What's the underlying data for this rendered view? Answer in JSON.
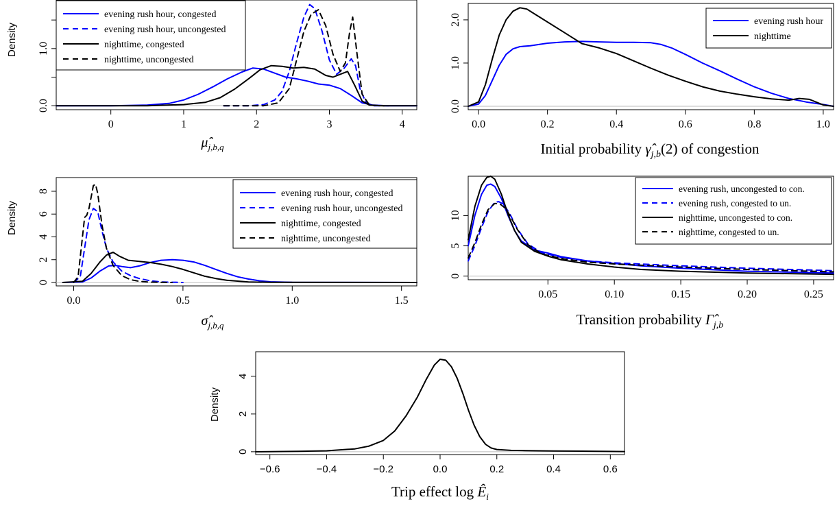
{
  "figure": {
    "background": "#ffffff",
    "axis_color": "#000000",
    "baseline_color": "#bbbbbb"
  },
  "chart_data": [
    {
      "id": "mu",
      "type": "line",
      "xlabel": "μ̂ j,b,q",
      "ylabel": "Density",
      "xlim": [
        -0.75,
        4.2
      ],
      "ylim": [
        -0.07,
        1.85
      ],
      "xticks": [
        0,
        1,
        2,
        3,
        4
      ],
      "xtick_labels": [
        "0",
        "1",
        "2",
        "3",
        "4"
      ],
      "yticks": [
        0,
        0.5,
        1.0,
        1.5
      ],
      "ytick_labels": [
        "0.0",
        "",
        "1.0",
        ""
      ],
      "legend_position": "top-left",
      "series": [
        {
          "name": "evening rush hour, congested",
          "color": "#0000ff",
          "dash": "solid",
          "x": [
            -0.75,
            0.0,
            0.5,
            0.8,
            1.0,
            1.2,
            1.4,
            1.6,
            1.8,
            1.95,
            2.1,
            2.25,
            2.4,
            2.55,
            2.7,
            2.85,
            3.0,
            3.15,
            3.3,
            3.45,
            3.6,
            3.8,
            4.2
          ],
          "y": [
            0.0,
            0.0,
            0.01,
            0.04,
            0.1,
            0.2,
            0.33,
            0.47,
            0.59,
            0.66,
            0.64,
            0.57,
            0.5,
            0.47,
            0.43,
            0.38,
            0.36,
            0.3,
            0.18,
            0.05,
            0.01,
            0.0,
            0.0
          ]
        },
        {
          "name": "evening rush hour, uncongested",
          "color": "#0000ff",
          "dash": "dashed",
          "x": [
            1.55,
            1.9,
            2.1,
            2.25,
            2.35,
            2.45,
            2.55,
            2.65,
            2.73,
            2.8,
            2.9,
            3.0,
            3.1,
            3.2,
            3.3,
            3.36,
            3.42,
            3.5,
            3.6,
            3.85
          ],
          "y": [
            0.0,
            0.0,
            0.02,
            0.1,
            0.25,
            0.6,
            1.1,
            1.55,
            1.77,
            1.7,
            1.3,
            0.8,
            0.55,
            0.65,
            0.82,
            0.7,
            0.3,
            0.06,
            0.0,
            0.0
          ]
        },
        {
          "name": "nighttime, congested",
          "color": "#000000",
          "dash": "solid",
          "x": [
            -0.75,
            0.5,
            1.0,
            1.3,
            1.5,
            1.7,
            1.9,
            2.05,
            2.2,
            2.35,
            2.5,
            2.65,
            2.8,
            2.95,
            3.05,
            3.15,
            3.25,
            3.35,
            3.45,
            3.55,
            3.7,
            4.2
          ],
          "y": [
            0.0,
            0.0,
            0.02,
            0.06,
            0.14,
            0.29,
            0.48,
            0.63,
            0.7,
            0.69,
            0.66,
            0.67,
            0.64,
            0.53,
            0.5,
            0.55,
            0.6,
            0.35,
            0.08,
            0.01,
            0.0,
            0.0
          ]
        },
        {
          "name": "nighttime, uncongested",
          "color": "#000000",
          "dash": "dashed",
          "x": [
            1.55,
            2.1,
            2.3,
            2.45,
            2.55,
            2.65,
            2.75,
            2.85,
            2.95,
            3.05,
            3.15,
            3.22,
            3.28,
            3.32,
            3.38,
            3.45,
            3.55,
            3.75
          ],
          "y": [
            0.0,
            0.0,
            0.05,
            0.3,
            0.8,
            1.3,
            1.6,
            1.68,
            1.4,
            0.9,
            0.6,
            0.75,
            1.3,
            1.55,
            0.9,
            0.2,
            0.01,
            0.0
          ]
        }
      ]
    },
    {
      "id": "gamma",
      "type": "line",
      "xlabel": "Initial probability γ̂ j,b(2) of congestion",
      "ylabel": "",
      "xlim": [
        -0.03,
        1.03
      ],
      "ylim": [
        -0.08,
        2.38
      ],
      "xticks": [
        0,
        0.2,
        0.4,
        0.6,
        0.8,
        1.0
      ],
      "xtick_labels": [
        "0.0",
        "0.2",
        "0.4",
        "0.6",
        "0.8",
        "1.0"
      ],
      "yticks": [
        0,
        1.0,
        2.0
      ],
      "ytick_labels": [
        "0.0",
        "1.0",
        "2.0"
      ],
      "legend_position": "top-right",
      "series": [
        {
          "name": "evening rush hour",
          "color": "#0000ff",
          "dash": "solid",
          "x": [
            -0.03,
            0.0,
            0.02,
            0.04,
            0.06,
            0.08,
            0.1,
            0.12,
            0.15,
            0.2,
            0.25,
            0.3,
            0.35,
            0.4,
            0.45,
            0.5,
            0.53,
            0.56,
            0.6,
            0.65,
            0.7,
            0.75,
            0.8,
            0.85,
            0.9,
            0.95,
            1.0,
            1.03
          ],
          "y": [
            0.0,
            0.05,
            0.25,
            0.6,
            0.95,
            1.2,
            1.33,
            1.38,
            1.4,
            1.46,
            1.49,
            1.5,
            1.49,
            1.48,
            1.48,
            1.47,
            1.43,
            1.35,
            1.2,
            1.0,
            0.82,
            0.63,
            0.45,
            0.3,
            0.18,
            0.1,
            0.04,
            0.0
          ]
        },
        {
          "name": "nighttime",
          "color": "#000000",
          "dash": "solid",
          "x": [
            -0.03,
            0.0,
            0.02,
            0.04,
            0.06,
            0.08,
            0.1,
            0.12,
            0.14,
            0.16,
            0.2,
            0.25,
            0.3,
            0.35,
            0.4,
            0.45,
            0.5,
            0.55,
            0.6,
            0.65,
            0.7,
            0.75,
            0.8,
            0.85,
            0.9,
            0.93,
            0.96,
            1.0,
            1.03
          ],
          "y": [
            0.0,
            0.1,
            0.5,
            1.1,
            1.65,
            2.0,
            2.2,
            2.28,
            2.25,
            2.15,
            1.95,
            1.7,
            1.45,
            1.35,
            1.22,
            1.05,
            0.88,
            0.72,
            0.58,
            0.45,
            0.35,
            0.28,
            0.22,
            0.17,
            0.14,
            0.18,
            0.16,
            0.03,
            0.0
          ]
        }
      ]
    },
    {
      "id": "sigma",
      "type": "line",
      "xlabel": "σ̂ j,b,q",
      "ylabel": "Density",
      "xlim": [
        -0.08,
        1.57
      ],
      "ylim": [
        -0.3,
        9.2
      ],
      "xticks": [
        0,
        0.5,
        1.0,
        1.5
      ],
      "xtick_labels": [
        "0.0",
        "0.5",
        "1.0",
        "1.5"
      ],
      "yticks": [
        0,
        2,
        4,
        6,
        8
      ],
      "ytick_labels": [
        "0",
        "2",
        "4",
        "6",
        "8"
      ],
      "legend_position": "top-right",
      "series": [
        {
          "name": "evening rush hour, congested",
          "color": "#0000ff",
          "dash": "solid",
          "x": [
            -0.05,
            0.04,
            0.08,
            0.12,
            0.16,
            0.19,
            0.22,
            0.26,
            0.3,
            0.35,
            0.4,
            0.45,
            0.5,
            0.55,
            0.6,
            0.65,
            0.7,
            0.75,
            0.8,
            0.85,
            0.9,
            1.0,
            1.57
          ],
          "y": [
            0.0,
            0.05,
            0.4,
            1.0,
            1.45,
            1.5,
            1.4,
            1.3,
            1.45,
            1.75,
            1.95,
            2.0,
            1.95,
            1.8,
            1.5,
            1.15,
            0.8,
            0.5,
            0.3,
            0.15,
            0.06,
            0.01,
            0.0
          ]
        },
        {
          "name": "evening rush hour, uncongested",
          "color": "#0000ff",
          "dash": "dashed",
          "x": [
            0.0,
            0.03,
            0.05,
            0.07,
            0.09,
            0.11,
            0.13,
            0.15,
            0.18,
            0.22,
            0.26,
            0.3,
            0.35,
            0.4,
            0.5
          ],
          "y": [
            0.0,
            0.5,
            3.0,
            5.5,
            6.5,
            6.2,
            4.5,
            3.0,
            1.8,
            1.0,
            0.6,
            0.35,
            0.15,
            0.05,
            0.0
          ]
        },
        {
          "name": "nighttime, congested",
          "color": "#000000",
          "dash": "solid",
          "x": [
            -0.05,
            0.04,
            0.08,
            0.12,
            0.15,
            0.18,
            0.21,
            0.25,
            0.3,
            0.35,
            0.4,
            0.45,
            0.5,
            0.55,
            0.6,
            0.65,
            0.7,
            0.8,
            0.9,
            1.57
          ],
          "y": [
            0.0,
            0.1,
            0.8,
            1.8,
            2.4,
            2.65,
            2.3,
            1.95,
            1.85,
            1.75,
            1.6,
            1.4,
            1.15,
            0.85,
            0.55,
            0.35,
            0.2,
            0.05,
            0.01,
            0.0
          ]
        },
        {
          "name": "nighttime, uncongested",
          "color": "#000000",
          "dash": "dashed",
          "x": [
            0.0,
            0.02,
            0.04,
            0.05,
            0.06,
            0.07,
            0.08,
            0.09,
            0.1,
            0.11,
            0.13,
            0.15,
            0.18,
            0.22,
            0.26,
            0.3,
            0.35,
            0.45
          ],
          "y": [
            0.0,
            0.5,
            4.0,
            5.7,
            5.9,
            6.5,
            7.5,
            8.5,
            8.6,
            7.8,
            5.0,
            3.0,
            1.5,
            0.6,
            0.25,
            0.1,
            0.03,
            0.0
          ]
        }
      ]
    },
    {
      "id": "Gamma",
      "type": "line",
      "xlabel": "Transition probability Γ̂ j,b",
      "ylabel": "",
      "xlim": [
        -0.01,
        0.265
      ],
      "ylim": [
        -0.6,
        16.5
      ],
      "xticks": [
        0.05,
        0.1,
        0.15,
        0.2,
        0.25
      ],
      "xtick_labels": [
        "0.05",
        "0.10",
        "0.15",
        "0.20",
        "0.25"
      ],
      "yticks": [
        0,
        5,
        10
      ],
      "ytick_labels": [
        "0",
        "5",
        "10"
      ],
      "legend_position": "top-right",
      "series": [
        {
          "name": "evening rush, uncongested to con.",
          "color": "#0000ff",
          "dash": "solid",
          "x": [
            -0.01,
            -0.005,
            0.0,
            0.004,
            0.007,
            0.01,
            0.015,
            0.02,
            0.025,
            0.03,
            0.04,
            0.05,
            0.06,
            0.08,
            0.1,
            0.12,
            0.15,
            0.2,
            0.265
          ],
          "y": [
            5.0,
            10.0,
            13.5,
            15.0,
            15.2,
            14.8,
            12.8,
            10.0,
            7.5,
            5.8,
            4.3,
            3.8,
            3.2,
            2.5,
            2.1,
            1.7,
            1.3,
            0.8,
            0.5
          ]
        },
        {
          "name": "evening rush, congested to un.",
          "color": "#0000ff",
          "dash": "dashed",
          "x": [
            -0.01,
            -0.005,
            0.0,
            0.005,
            0.01,
            0.013,
            0.017,
            0.022,
            0.027,
            0.035,
            0.045,
            0.06,
            0.08,
            0.1,
            0.15,
            0.2,
            0.265
          ],
          "y": [
            2.5,
            5.0,
            8.0,
            10.7,
            12.2,
            12.3,
            11.8,
            10.0,
            7.8,
            5.3,
            3.9,
            3.1,
            2.5,
            2.2,
            1.7,
            1.3,
            0.9
          ]
        },
        {
          "name": "nighttime, uncongested to con.",
          "color": "#000000",
          "dash": "solid",
          "x": [
            -0.01,
            -0.005,
            0.0,
            0.004,
            0.007,
            0.01,
            0.015,
            0.02,
            0.025,
            0.03,
            0.04,
            0.05,
            0.06,
            0.08,
            0.1,
            0.12,
            0.15,
            0.2,
            0.265
          ],
          "y": [
            6.0,
            11.5,
            15.0,
            16.3,
            16.6,
            16.0,
            13.5,
            10.2,
            7.5,
            5.6,
            4.1,
            3.3,
            2.7,
            2.0,
            1.5,
            1.1,
            0.8,
            0.5,
            0.3
          ]
        },
        {
          "name": "nighttime, congested to un.",
          "color": "#000000",
          "dash": "dashed",
          "x": [
            -0.01,
            -0.005,
            0.0,
            0.005,
            0.01,
            0.014,
            0.018,
            0.022,
            0.027,
            0.035,
            0.045,
            0.06,
            0.08,
            0.1,
            0.15,
            0.2,
            0.265
          ],
          "y": [
            3.0,
            5.5,
            8.5,
            11.0,
            12.0,
            11.9,
            11.2,
            9.8,
            7.7,
            5.2,
            3.7,
            2.9,
            2.3,
            2.0,
            1.5,
            1.1,
            0.7
          ]
        }
      ]
    },
    {
      "id": "trip",
      "type": "line",
      "xlabel": "Trip effect log Ê i",
      "ylabel": "Density",
      "xlim": [
        -0.65,
        0.65
      ],
      "ylim": [
        -0.15,
        5.3
      ],
      "xticks": [
        -0.6,
        -0.4,
        -0.2,
        0.0,
        0.2,
        0.4,
        0.6
      ],
      "xtick_labels": [
        "−0.6",
        "−0.4",
        "−0.2",
        "0.0",
        "0.2",
        "0.4",
        "0.6"
      ],
      "yticks": [
        0,
        2,
        4
      ],
      "ytick_labels": [
        "0",
        "2",
        "4"
      ],
      "legend_position": "none",
      "series": [
        {
          "name": "",
          "color": "#000000",
          "dash": "solid",
          "x": [
            -0.65,
            -0.5,
            -0.4,
            -0.3,
            -0.25,
            -0.2,
            -0.16,
            -0.12,
            -0.08,
            -0.05,
            -0.02,
            0.0,
            0.02,
            0.04,
            0.06,
            0.08,
            0.1,
            0.12,
            0.14,
            0.16,
            0.18,
            0.2,
            0.25,
            0.3,
            0.4,
            0.5,
            0.65
          ],
          "y": [
            0.0,
            0.02,
            0.05,
            0.15,
            0.3,
            0.6,
            1.1,
            1.9,
            2.9,
            3.8,
            4.6,
            4.9,
            4.85,
            4.5,
            3.9,
            3.1,
            2.2,
            1.4,
            0.8,
            0.4,
            0.2,
            0.12,
            0.07,
            0.06,
            0.04,
            0.03,
            0.01
          ]
        }
      ]
    }
  ]
}
